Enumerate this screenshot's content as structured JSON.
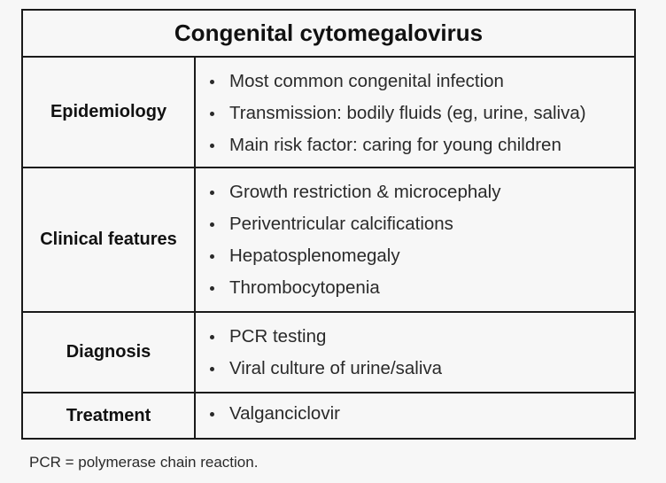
{
  "table": {
    "title": "Congenital cytomegalovirus",
    "rows": [
      {
        "label": "Epidemiology",
        "items": [
          "Most common congenital infection",
          "Transmission: bodily fluids (eg, urine, saliva)",
          "Main risk factor: caring for young children"
        ]
      },
      {
        "label": "Clinical features",
        "items": [
          "Growth restriction & microcephaly",
          "Periventricular calcifications",
          "Hepatosplenomegaly",
          "Thrombocytopenia"
        ]
      },
      {
        "label": "Diagnosis",
        "items": [
          "PCR testing",
          "Viral culture of urine/saliva"
        ]
      },
      {
        "label": "Treatment",
        "items": [
          "Valganciclovir"
        ]
      }
    ]
  },
  "footnote": "PCR = polymerase chain reaction."
}
